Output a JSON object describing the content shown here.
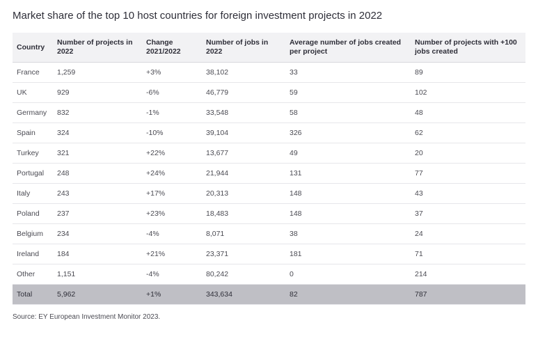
{
  "title": "Market share of the top 10 host countries for foreign investment projects in 2022",
  "table": {
    "columns": [
      {
        "key": "country",
        "label": "Country",
        "class": "col-country"
      },
      {
        "key": "projects",
        "label": "Number of projects in 2022",
        "class": "col-projects"
      },
      {
        "key": "change",
        "label": "Change 2021/2022",
        "class": "col-change"
      },
      {
        "key": "jobs",
        "label": "Number of jobs in 2022",
        "class": "col-jobs"
      },
      {
        "key": "avg",
        "label": "Average number of jobs created per project",
        "class": "col-avg"
      },
      {
        "key": "plus100",
        "label": "Number of projects with +100 jobs created",
        "class": "col-plus100"
      }
    ],
    "rows": [
      {
        "country": "France",
        "projects": "1,259",
        "change": "+3%",
        "jobs": "38,102",
        "avg": "33",
        "plus100": "89"
      },
      {
        "country": "UK",
        "projects": "929",
        "change": "-6%",
        "jobs": "46,779",
        "avg": "59",
        "plus100": "102"
      },
      {
        "country": "Germany",
        "projects": "832",
        "change": "-1%",
        "jobs": "33,548",
        "avg": "58",
        "plus100": "48"
      },
      {
        "country": "Spain",
        "projects": "324",
        "change": "-10%",
        "jobs": "39,104",
        "avg": "326",
        "plus100": "62"
      },
      {
        "country": "Turkey",
        "projects": "321",
        "change": "+22%",
        "jobs": "13,677",
        "avg": "49",
        "plus100": "20"
      },
      {
        "country": "Portugal",
        "projects": "248",
        "change": "+24%",
        "jobs": "21,944",
        "avg": "131",
        "plus100": "77"
      },
      {
        "country": "Italy",
        "projects": "243",
        "change": "+17%",
        "jobs": "20,313",
        "avg": "148",
        "plus100": "43"
      },
      {
        "country": "Poland",
        "projects": "237",
        "change": "+23%",
        "jobs": "18,483",
        "avg": "148",
        "plus100": "37"
      },
      {
        "country": "Belgium",
        "projects": "234",
        "change": "-4%",
        "jobs": "8,071",
        "avg": "38",
        "plus100": "24"
      },
      {
        "country": "Ireland",
        "projects": "184",
        "change": "+21%",
        "jobs": "23,371",
        "avg": "181",
        "plus100": "71"
      },
      {
        "country": "Other",
        "projects": "1,151",
        "change": "-4%",
        "jobs": "80,242",
        "avg": "0",
        "plus100": "214"
      }
    ],
    "total": {
      "country": "Total",
      "projects": "5,962",
      "change": "+1%",
      "jobs": "343,634",
      "avg": "82",
      "plus100": "787"
    }
  },
  "source": "Source: EY European Investment Monitor 2023.",
  "style": {
    "header_bg": "#f2f2f4",
    "row_border": "#e6e6ea",
    "total_bg": "#bfbfc5",
    "text_color": "#2e2e38",
    "body_text": "#4a4a52",
    "font_size_title": 15,
    "font_size_table": 10.5,
    "font_size_source": 10
  }
}
